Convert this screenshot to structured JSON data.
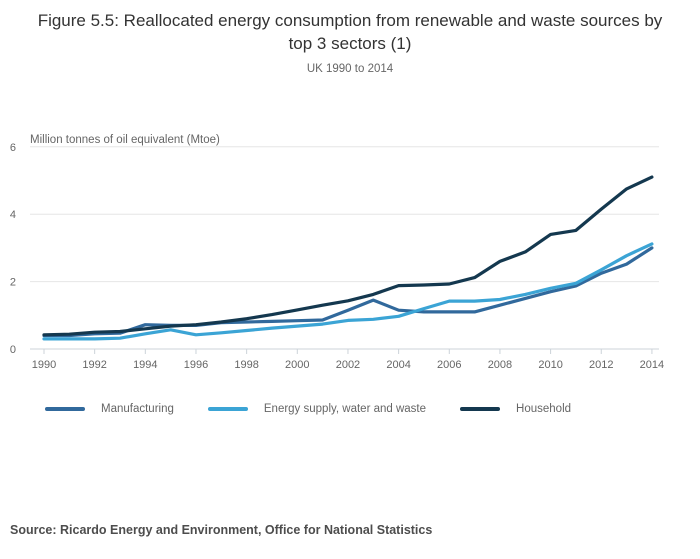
{
  "source": "Source: Ricardo Energy and Environment, Office for National Statistics",
  "chart_data": {
    "type": "line",
    "title": "Figure 5.5: Reallocated energy consumption from renewable and waste sources by top 3 sectors (1)",
    "subtitle": "UK 1990 to 2014",
    "ylabel": "Million tonnes of oil equivalent (Mtoe)",
    "xlabel": "",
    "x": [
      1990,
      1991,
      1992,
      1993,
      1994,
      1995,
      1996,
      1997,
      1998,
      1999,
      2000,
      2001,
      2002,
      2003,
      2004,
      2005,
      2006,
      2007,
      2008,
      2009,
      2010,
      2011,
      2012,
      2013,
      2014
    ],
    "x_tick_interval": 2,
    "ylim": [
      0,
      6
    ],
    "yticks": [
      0,
      2,
      4,
      6
    ],
    "grid": "horizontal",
    "legend_position": "bottom",
    "colors": {
      "grid": "#e6e6e6",
      "axis": "#ccd3d9",
      "tick_label": "#666666",
      "title": "#333333",
      "subtitle": "#666666"
    },
    "series": [
      {
        "name": "Manufacturing",
        "color": "#31699c",
        "values": [
          0.4,
          0.4,
          0.45,
          0.47,
          0.72,
          0.7,
          0.7,
          0.78,
          0.8,
          0.82,
          0.84,
          0.86,
          1.15,
          1.45,
          1.15,
          1.1,
          1.1,
          1.1,
          1.3,
          1.5,
          1.7,
          1.87,
          2.25,
          2.52,
          3.0
        ]
      },
      {
        "name": "Energy supply, water and waste",
        "color": "#3ba4d5",
        "values": [
          0.3,
          0.3,
          0.3,
          0.32,
          0.45,
          0.57,
          0.42,
          0.48,
          0.55,
          0.62,
          0.68,
          0.74,
          0.85,
          0.88,
          0.97,
          1.2,
          1.42,
          1.42,
          1.47,
          1.62,
          1.8,
          1.95,
          2.35,
          2.77,
          3.12
        ]
      },
      {
        "name": "Household",
        "color": "#14384f",
        "values": [
          0.42,
          0.44,
          0.5,
          0.52,
          0.6,
          0.68,
          0.72,
          0.8,
          0.9,
          1.02,
          1.16,
          1.3,
          1.43,
          1.62,
          1.88,
          1.9,
          1.93,
          2.12,
          2.6,
          2.88,
          3.4,
          3.52,
          4.15,
          4.75,
          5.1
        ]
      }
    ]
  }
}
